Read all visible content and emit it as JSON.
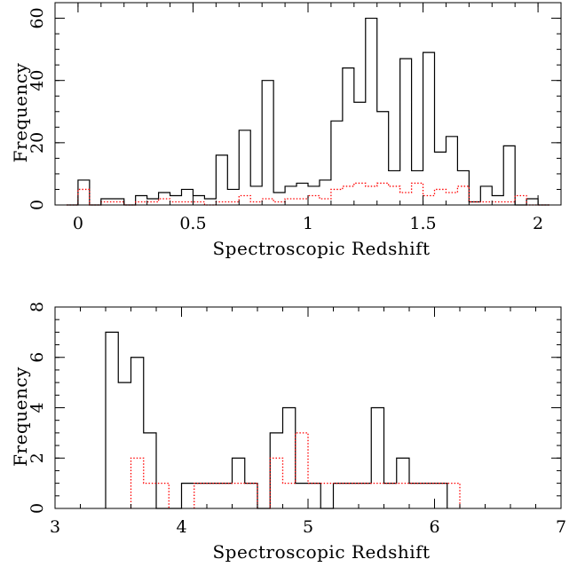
{
  "chart_data": [
    {
      "type": "histogram",
      "xlabel": "Spectroscopic Redshift",
      "ylabel": "Frequency",
      "xlim": [
        -0.1,
        2.1
      ],
      "ylim": [
        0,
        65
      ],
      "bin_width": 0.05,
      "x_ticks": [
        0,
        0.5,
        1,
        1.5,
        2
      ],
      "x_tick_labels": [
        "0",
        "0.5",
        "1",
        "1.5",
        "2"
      ],
      "x_minor_step": 0.1,
      "y_ticks": [
        0,
        20,
        40,
        60
      ],
      "y_tick_labels": [
        "0",
        "20",
        "40",
        "60"
      ],
      "y_minor_step": 5,
      "grid": false,
      "series": [
        {
          "style": "solid",
          "color": "#000000",
          "bins": [
            [
              -0.05,
              0,
              0
            ],
            [
              0,
              0.05,
              8
            ],
            [
              0.05,
              0.1,
              0
            ],
            [
              0.1,
              0.15,
              2
            ],
            [
              0.15,
              0.2,
              2
            ],
            [
              0.2,
              0.25,
              0
            ],
            [
              0.25,
              0.3,
              3
            ],
            [
              0.3,
              0.35,
              2
            ],
            [
              0.35,
              0.4,
              4
            ],
            [
              0.4,
              0.45,
              3
            ],
            [
              0.45,
              0.5,
              5
            ],
            [
              0.5,
              0.55,
              3
            ],
            [
              0.55,
              0.6,
              2
            ],
            [
              0.6,
              0.65,
              16
            ],
            [
              0.65,
              0.7,
              5
            ],
            [
              0.7,
              0.75,
              24
            ],
            [
              0.75,
              0.8,
              6
            ],
            [
              0.8,
              0.85,
              40
            ],
            [
              0.85,
              0.9,
              4
            ],
            [
              0.9,
              0.95,
              6
            ],
            [
              0.95,
              1.0,
              7
            ],
            [
              1.0,
              1.05,
              6
            ],
            [
              1.05,
              1.1,
              8
            ],
            [
              1.1,
              1.15,
              27
            ],
            [
              1.15,
              1.2,
              44
            ],
            [
              1.2,
              1.25,
              33
            ],
            [
              1.25,
              1.3,
              60
            ],
            [
              1.3,
              1.35,
              30
            ],
            [
              1.35,
              1.4,
              11
            ],
            [
              1.4,
              1.45,
              47
            ],
            [
              1.45,
              1.5,
              11
            ],
            [
              1.5,
              1.55,
              49
            ],
            [
              1.55,
              1.6,
              17
            ],
            [
              1.6,
              1.65,
              22
            ],
            [
              1.65,
              1.7,
              11
            ],
            [
              1.7,
              1.75,
              1
            ],
            [
              1.75,
              1.8,
              6
            ],
            [
              1.8,
              1.85,
              3
            ],
            [
              1.85,
              1.9,
              19
            ],
            [
              1.9,
              1.95,
              0
            ],
            [
              1.95,
              2.0,
              2
            ],
            [
              2.0,
              2.05,
              0
            ]
          ]
        },
        {
          "style": "dotted",
          "color": "#ff0000",
          "bins": [
            [
              -0.05,
              0,
              0
            ],
            [
              0,
              0.05,
              5
            ],
            [
              0.05,
              0.1,
              0
            ],
            [
              0.1,
              0.15,
              1
            ],
            [
              0.15,
              0.2,
              1
            ],
            [
              0.2,
              0.25,
              0
            ],
            [
              0.25,
              0.3,
              1
            ],
            [
              0.3,
              0.35,
              1
            ],
            [
              0.35,
              0.4,
              2
            ],
            [
              0.4,
              0.45,
              1
            ],
            [
              0.45,
              0.5,
              1
            ],
            [
              0.5,
              0.55,
              1
            ],
            [
              0.55,
              0.6,
              0
            ],
            [
              0.6,
              0.65,
              1
            ],
            [
              0.65,
              0.7,
              1
            ],
            [
              0.7,
              0.75,
              3
            ],
            [
              0.75,
              0.8,
              1
            ],
            [
              0.8,
              0.85,
              2
            ],
            [
              0.85,
              0.9,
              1
            ],
            [
              0.9,
              0.95,
              2
            ],
            [
              0.95,
              1.0,
              2
            ],
            [
              1.0,
              1.05,
              3
            ],
            [
              1.05,
              1.1,
              2
            ],
            [
              1.1,
              1.15,
              5
            ],
            [
              1.15,
              1.2,
              6
            ],
            [
              1.2,
              1.25,
              7
            ],
            [
              1.25,
              1.3,
              6
            ],
            [
              1.3,
              1.35,
              7
            ],
            [
              1.35,
              1.4,
              6
            ],
            [
              1.4,
              1.45,
              4
            ],
            [
              1.45,
              1.5,
              7
            ],
            [
              1.5,
              1.55,
              3
            ],
            [
              1.55,
              1.6,
              5
            ],
            [
              1.6,
              1.65,
              4
            ],
            [
              1.65,
              1.7,
              6
            ],
            [
              1.7,
              1.75,
              1
            ],
            [
              1.75,
              1.8,
              1
            ],
            [
              1.8,
              1.85,
              1
            ],
            [
              1.85,
              1.9,
              1
            ],
            [
              1.9,
              1.95,
              3
            ],
            [
              1.95,
              2.0,
              0
            ],
            [
              2.0,
              2.05,
              0
            ]
          ]
        }
      ]
    },
    {
      "type": "histogram",
      "xlabel": "Spectroscopic Redshift",
      "ylabel": "Frequency",
      "xlim": [
        3,
        7
      ],
      "ylim": [
        0,
        8
      ],
      "bin_width": 0.1,
      "x_ticks": [
        3,
        4,
        5,
        6,
        7
      ],
      "x_tick_labels": [
        "3",
        "4",
        "5",
        "6",
        "7"
      ],
      "x_minor_step": 0.2,
      "y_ticks": [
        0,
        2,
        4,
        6,
        8
      ],
      "y_tick_labels": [
        "0",
        "2",
        "4",
        "6",
        "8"
      ],
      "y_minor_step": 0.5,
      "grid": false,
      "series": [
        {
          "style": "solid",
          "color": "#000000",
          "bins": [
            [
              3.4,
              3.5,
              7
            ],
            [
              3.5,
              3.6,
              5
            ],
            [
              3.6,
              3.7,
              6
            ],
            [
              3.7,
              3.8,
              3
            ],
            [
              3.8,
              3.9,
              0
            ],
            [
              3.9,
              4.0,
              0
            ],
            [
              4.0,
              4.1,
              1
            ],
            [
              4.1,
              4.2,
              1
            ],
            [
              4.2,
              4.3,
              1
            ],
            [
              4.3,
              4.4,
              1
            ],
            [
              4.4,
              4.5,
              2
            ],
            [
              4.5,
              4.6,
              1
            ],
            [
              4.6,
              4.7,
              0
            ],
            [
              4.7,
              4.8,
              3
            ],
            [
              4.8,
              4.9,
              4
            ],
            [
              4.9,
              5.0,
              1
            ],
            [
              5.0,
              5.1,
              1
            ],
            [
              5.1,
              5.2,
              0
            ],
            [
              5.2,
              5.3,
              1
            ],
            [
              5.3,
              5.4,
              1
            ],
            [
              5.4,
              5.5,
              1
            ],
            [
              5.5,
              5.6,
              4
            ],
            [
              5.6,
              5.7,
              1
            ],
            [
              5.7,
              5.8,
              2
            ],
            [
              5.8,
              5.9,
              1
            ],
            [
              5.9,
              6.0,
              1
            ],
            [
              6.0,
              6.1,
              1
            ]
          ]
        },
        {
          "style": "dotted",
          "color": "#ff0000",
          "bins": [
            [
              3.6,
              3.7,
              2
            ],
            [
              3.7,
              3.8,
              1
            ],
            [
              3.8,
              3.9,
              1
            ],
            [
              4.1,
              4.2,
              1
            ],
            [
              4.2,
              4.3,
              1
            ],
            [
              4.3,
              4.4,
              1
            ],
            [
              4.4,
              4.5,
              1
            ],
            [
              4.5,
              4.6,
              1
            ],
            [
              4.7,
              4.8,
              2
            ],
            [
              4.8,
              4.9,
              1
            ],
            [
              4.9,
              5.0,
              3
            ],
            [
              5.0,
              5.1,
              1
            ],
            [
              5.1,
              5.2,
              1
            ],
            [
              5.2,
              5.3,
              1
            ],
            [
              5.3,
              5.4,
              1
            ],
            [
              5.4,
              5.5,
              1
            ],
            [
              5.5,
              5.6,
              1
            ],
            [
              5.6,
              5.7,
              1
            ],
            [
              5.7,
              5.8,
              1
            ],
            [
              5.8,
              5.9,
              1
            ],
            [
              5.9,
              6.0,
              1
            ],
            [
              6.0,
              6.1,
              1
            ],
            [
              6.1,
              6.2,
              1
            ]
          ]
        }
      ]
    }
  ]
}
